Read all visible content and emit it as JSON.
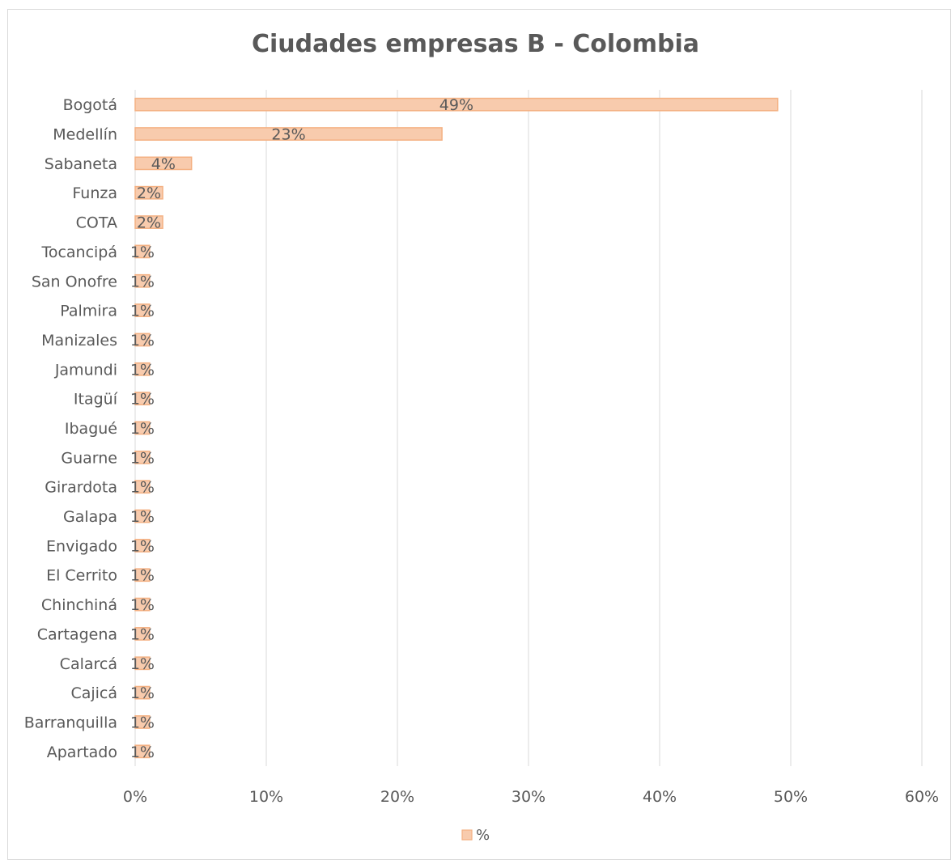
{
  "chart_data": {
    "type": "bar",
    "orientation": "horizontal",
    "title": "Ciudades empresas B - Colombia",
    "xlabel": "",
    "ylabel": "",
    "categories": [
      "Bogotá",
      "Medellín",
      "Sabaneta",
      "Funza",
      "COTA",
      "Tocancipá",
      "San Onofre",
      "Palmira",
      "Manizales",
      "Jamundi",
      "Itagüí",
      "Ibagué",
      "Guarne",
      "Girardota",
      "Galapa",
      "Envigado",
      "El Cerrito",
      "Chinchiná",
      "Cartagena",
      "Calarcá",
      "Cajicá",
      "Barranquilla",
      "Apartado"
    ],
    "series": [
      {
        "name": "%",
        "values": [
          49,
          23.4,
          4.3,
          2.1,
          2.1,
          1.1,
          1.1,
          1.1,
          1.1,
          1.1,
          1.1,
          1.1,
          1.1,
          1.1,
          1.1,
          1.1,
          1.1,
          1.1,
          1.1,
          1.1,
          1.1,
          1.1,
          1.1
        ],
        "data_labels": [
          "49%",
          "23%",
          "4%",
          "2%",
          "2%",
          "1%",
          "1%",
          "1%",
          "1%",
          "1%",
          "1%",
          "1%",
          "1%",
          "1%",
          "1%",
          "1%",
          "1%",
          "1%",
          "1%",
          "1%",
          "1%",
          "1%",
          "1%"
        ],
        "color": "#f8cbad",
        "border_color": "#f4b183"
      }
    ],
    "xlim": [
      0,
      60
    ],
    "x_ticks": [
      0,
      10,
      20,
      30,
      40,
      50,
      60
    ],
    "x_tick_labels": [
      "0%",
      "10%",
      "20%",
      "30%",
      "40%",
      "50%",
      "60%"
    ],
    "grid": true,
    "gridline_color": "#d9d9d9",
    "legend": {
      "position": "bottom",
      "entries": [
        "%"
      ]
    }
  }
}
